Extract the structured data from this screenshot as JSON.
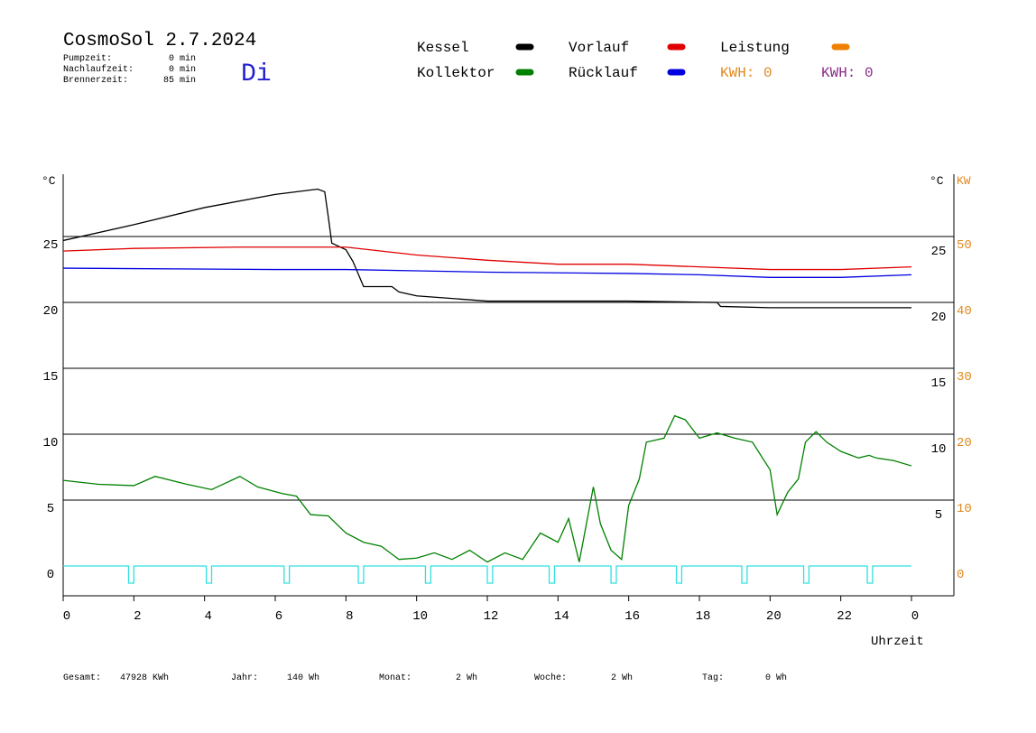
{
  "chart_data": {
    "type": "line",
    "title": "CosmoSol 2.7.2024",
    "weekday": "Di",
    "info": [
      {
        "label": "Pumpzeit:",
        "value": "0 min"
      },
      {
        "label": "Nachlaufzeit:",
        "value": "0 min"
      },
      {
        "label": "Brennerzeit:",
        "value": "85 min"
      }
    ],
    "legend": [
      {
        "name": "Kessel",
        "color": "#000000"
      },
      {
        "name": "Vorlauf",
        "color": "#e00000"
      },
      {
        "name": "Leistung",
        "color": "#f08000"
      },
      {
        "name": "Kollektor",
        "color": "#008000"
      },
      {
        "name": "Rücklauf",
        "color": "#0000e0"
      }
    ],
    "kwh": [
      {
        "text": "KWH: 0",
        "color": "#e08a20"
      },
      {
        "text": "KWH: 0",
        "color": "#8a2a8a"
      }
    ],
    "y_label": "°C",
    "y_label_right": "°C",
    "y2_label": "KW",
    "x_label": "Uhrzeit",
    "xlim": [
      0,
      24
    ],
    "xticks": [
      0,
      2,
      4,
      6,
      8,
      10,
      12,
      14,
      16,
      18,
      20,
      22,
      {
        "value": 24,
        "label": "0"
      }
    ],
    "ylim": [
      -2.26,
      29.73
    ],
    "yticks": [
      0,
      5,
      10,
      15,
      20,
      25
    ],
    "y2lim": [
      -4.52,
      59.46
    ],
    "y2ticks": [
      0,
      10,
      20,
      30,
      40,
      50
    ],
    "y2color": "#e08a20",
    "grid": true,
    "series": [
      {
        "name": "Kessel",
        "color": "#000000",
        "x": [
          0,
          2,
          4,
          6,
          7.2,
          7.4,
          7.5,
          7.6,
          8.0,
          8.2,
          8.5,
          9.3,
          9.5,
          10,
          11,
          12,
          14,
          16,
          18.5,
          18.6,
          20,
          24
        ],
        "values": [
          24.7,
          25.9,
          27.2,
          28.2,
          28.6,
          28.4,
          26.5,
          24.5,
          24.0,
          23.1,
          21.2,
          21.2,
          20.8,
          20.5,
          20.3,
          20.1,
          20.1,
          20.1,
          20.0,
          19.7,
          19.6,
          19.6
        ]
      },
      {
        "name": "Vorlauf",
        "color": "#e00000",
        "x": [
          0,
          2,
          5,
          8,
          9,
          10,
          12,
          14,
          16,
          18,
          20,
          22,
          24
        ],
        "values": [
          23.9,
          24.1,
          24.2,
          24.2,
          23.9,
          23.6,
          23.2,
          22.9,
          22.9,
          22.7,
          22.5,
          22.5,
          22.7
        ]
      },
      {
        "name": "Rücklauf",
        "color": "#0000e0",
        "x": [
          0,
          6,
          8,
          10,
          12,
          16,
          18,
          20,
          22,
          24
        ],
        "values": [
          22.6,
          22.5,
          22.5,
          22.4,
          22.3,
          22.2,
          22.1,
          21.9,
          21.9,
          22.1
        ]
      },
      {
        "name": "Kollektor",
        "color": "#008000",
        "x": [
          0,
          1,
          2,
          2.6,
          3.5,
          4.2,
          5,
          5.5,
          6.2,
          6.6,
          7,
          7.5,
          8,
          8.5,
          9,
          9.5,
          10,
          10.5,
          11,
          11.5,
          12,
          12.5,
          13,
          13.5,
          14,
          14.3,
          14.6,
          15,
          15.2,
          15.5,
          15.8,
          16,
          16.3,
          16.5,
          17,
          17.3,
          17.6,
          18,
          18.5,
          19,
          19.5,
          20,
          20.2,
          20.5,
          20.8,
          21,
          21.3,
          21.6,
          22,
          22.5,
          22.8,
          23,
          23.5,
          24
        ],
        "values": [
          6.5,
          6.2,
          6.1,
          6.8,
          6.2,
          5.8,
          6.8,
          6.0,
          5.5,
          5.3,
          3.9,
          3.8,
          2.5,
          1.8,
          1.5,
          0.5,
          0.6,
          1.0,
          0.5,
          1.2,
          0.3,
          1.0,
          0.5,
          2.5,
          1.8,
          3.6,
          0.3,
          6.0,
          3.2,
          1.2,
          0.5,
          4.6,
          6.6,
          9.4,
          9.7,
          11.4,
          11.1,
          9.7,
          10.1,
          9.7,
          9.4,
          7.3,
          3.9,
          5.6,
          6.6,
          9.4,
          10.2,
          9.4,
          8.7,
          8.2,
          8.4,
          8.2,
          8.0,
          7.6
        ]
      },
      {
        "color": "#30e0e0",
        "x": [
          0,
          1.85,
          1.85,
          2.0,
          2.0,
          4.05,
          4.05,
          4.2,
          4.2,
          6.25,
          6.25,
          6.4,
          6.4,
          8.35,
          8.35,
          8.5,
          8.5,
          10.25,
          10.25,
          10.4,
          10.4,
          12.0,
          12.0,
          12.15,
          12.15,
          13.75,
          13.75,
          13.9,
          13.9,
          15.5,
          15.5,
          15.65,
          15.65,
          17.35,
          17.35,
          17.5,
          17.5,
          19.2,
          19.2,
          19.35,
          19.35,
          20.95,
          20.95,
          21.1,
          21.1,
          22.75,
          22.75,
          22.9,
          22.9,
          24
        ],
        "values": [
          0,
          0,
          -1.3,
          -1.3,
          0,
          0,
          -1.3,
          -1.3,
          0,
          0,
          -1.3,
          -1.3,
          0,
          0,
          -1.3,
          -1.3,
          0,
          0,
          -1.3,
          -1.3,
          0,
          0,
          -1.3,
          -1.3,
          0,
          0,
          -1.3,
          -1.3,
          0,
          0,
          -1.3,
          -1.3,
          0,
          0,
          -1.3,
          -1.3,
          0,
          0,
          -1.3,
          -1.3,
          0,
          0,
          -1.3,
          -1.3,
          0,
          0,
          -1.3,
          -1.3,
          0,
          0
        ]
      }
    ],
    "footer": [
      {
        "label": "Gesamt:",
        "value": "47928 KWh"
      },
      {
        "label": "Jahr:",
        "value": "140 Wh"
      },
      {
        "label": "Monat:",
        "value": "2 Wh"
      },
      {
        "label": "Woche:",
        "value": "2 Wh"
      },
      {
        "label": "Tag:",
        "value": "0 Wh"
      }
    ]
  }
}
